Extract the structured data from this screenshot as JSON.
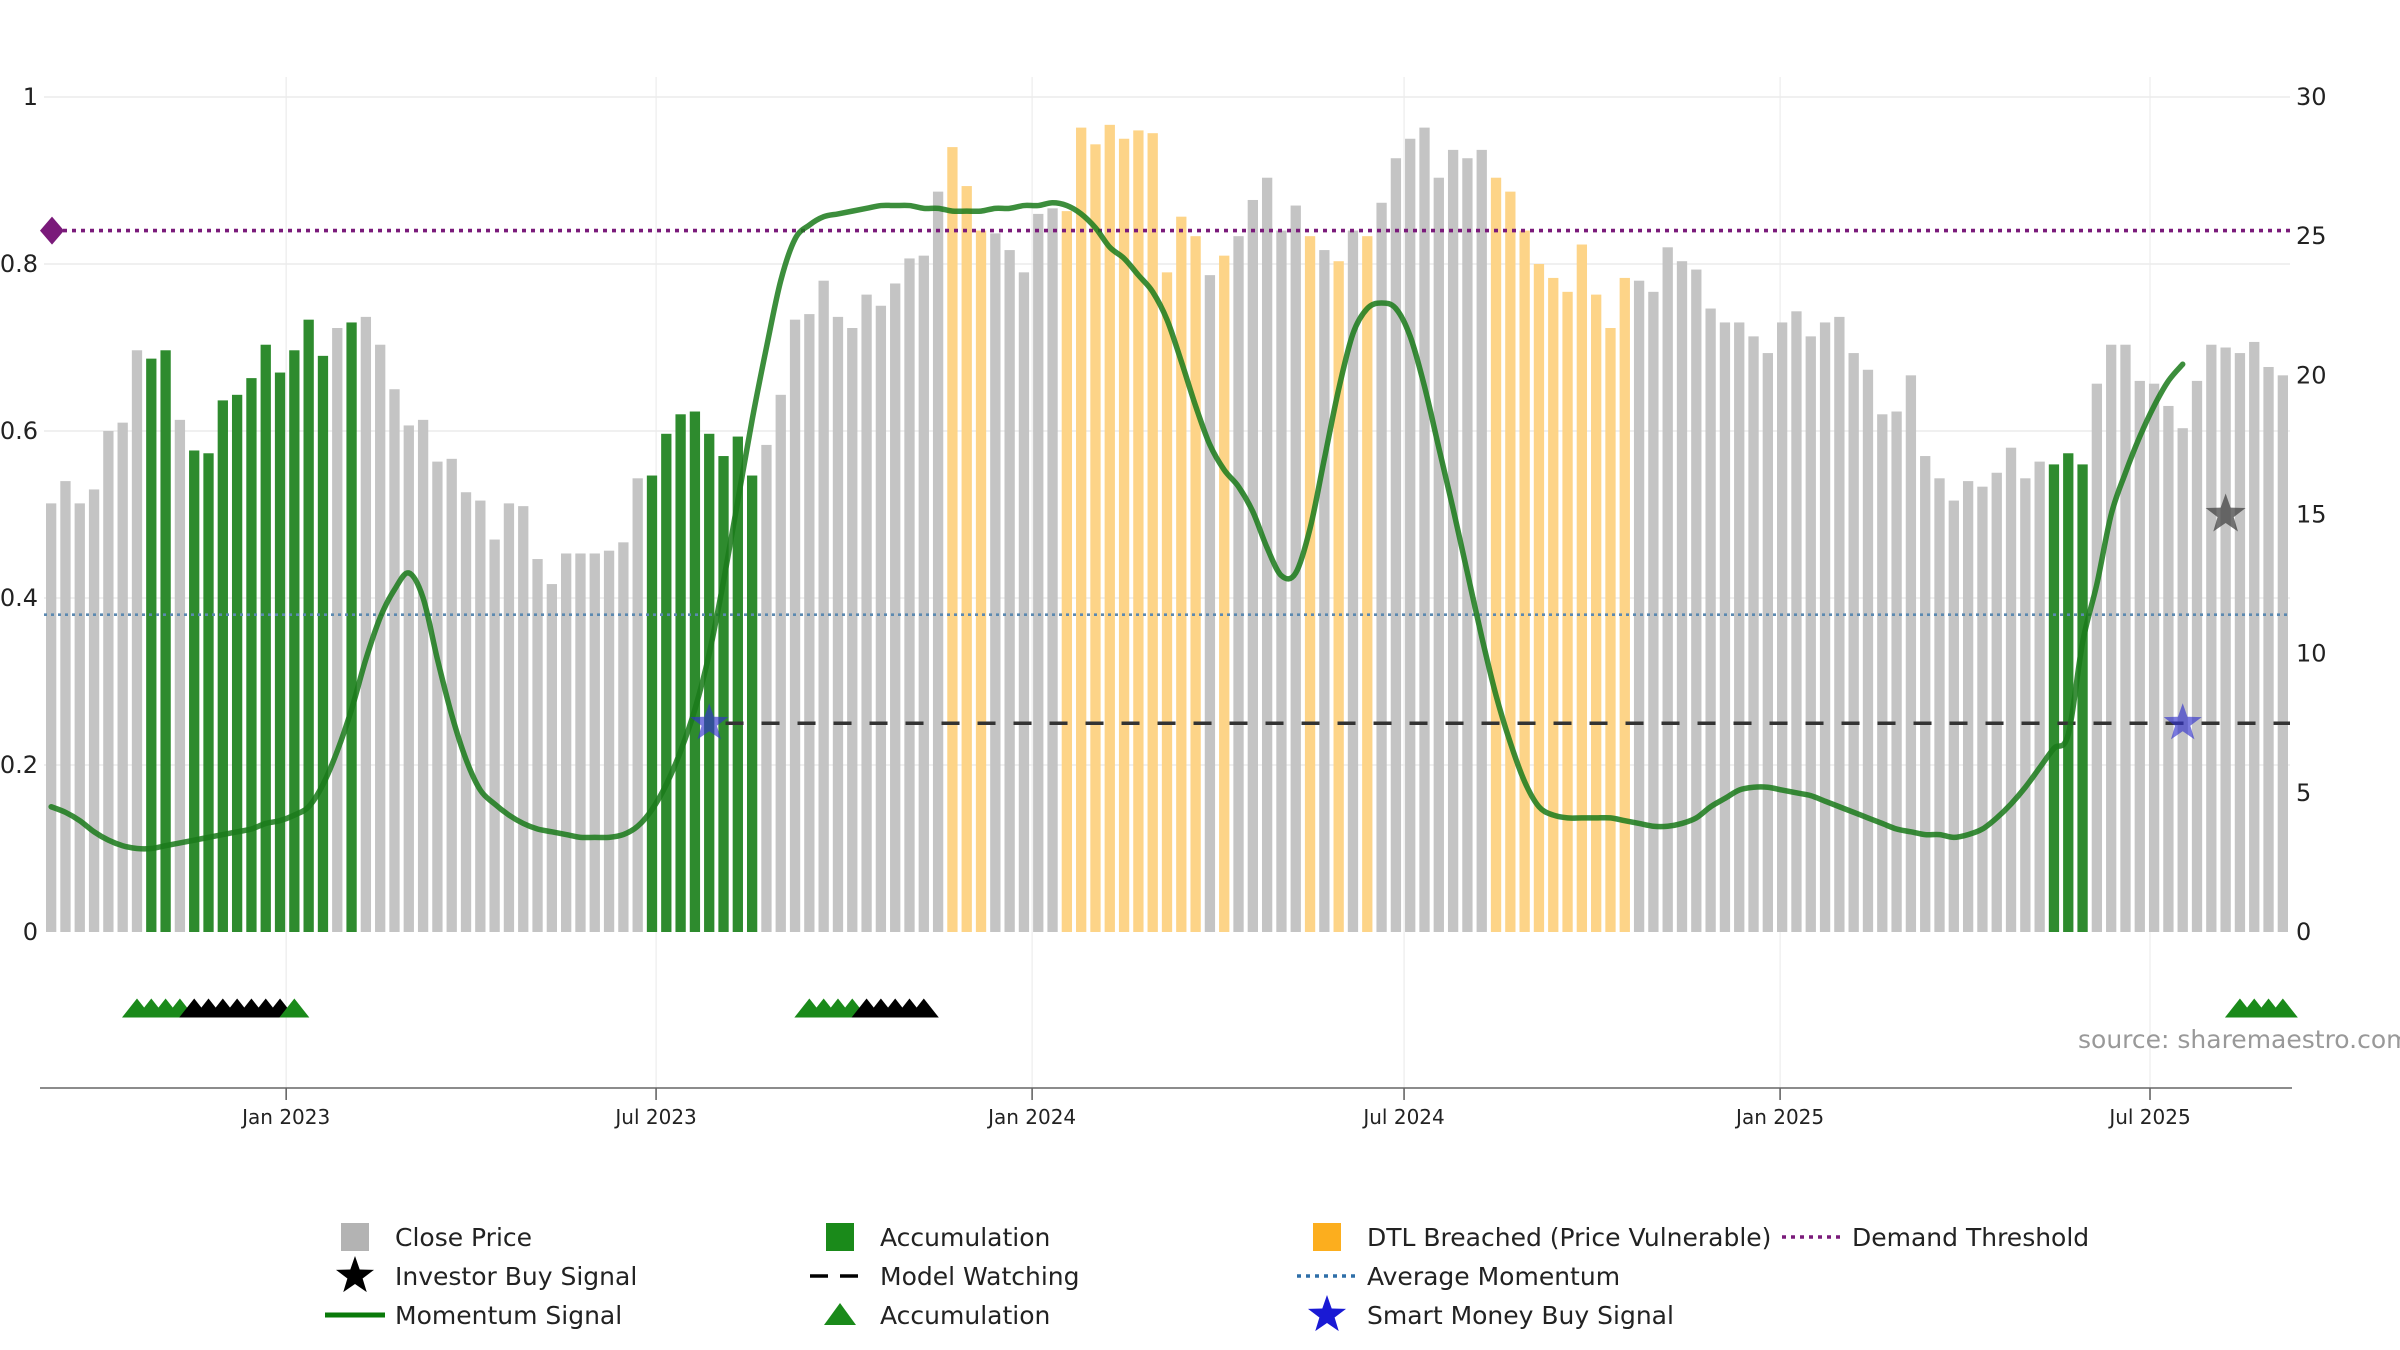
{
  "chart_data": {
    "type": "bar",
    "source_text": "source: sharemaestro.com",
    "x_start": "2022-09-08",
    "bar_interval_days": 7,
    "x_ticks": [
      "2023-01-01",
      "2023-07-01",
      "2024-01-01",
      "2024-07-01",
      "2025-01-01",
      "2025-07-01"
    ],
    "x_tick_labels": [
      "Jan 2023",
      "Jul 2023",
      "Jan 2024",
      "Jul 2024",
      "Jan 2025",
      "Jul 2025"
    ],
    "left_axis": {
      "range": [
        0,
        1
      ],
      "ticks": [
        0,
        0.2,
        0.4,
        0.6,
        0.8,
        1
      ],
      "tick_labels": [
        "0",
        "0.2",
        "0.4",
        "0.6",
        "0.8",
        "1"
      ]
    },
    "right_axis": {
      "range": [
        0,
        30
      ],
      "ticks": [
        0,
        5,
        10,
        15,
        20,
        25,
        30
      ],
      "tick_labels": [
        "0",
        "5",
        "10",
        "15",
        "20",
        "25",
        "30"
      ]
    },
    "grid": true,
    "colors": {
      "close": "#c4c4c4",
      "accumulation": "#2e8b2e",
      "dtl": "#fdd488",
      "momentum": "#1a7a1a",
      "average": "#5b89b0",
      "demand": "#7a1a7a",
      "watch": "#333333",
      "investor_star": "#444444",
      "smart_star": "#3333cc",
      "marker_acc": "#1a8a1a",
      "marker_investor": "#000000"
    },
    "close_prices": [
      15.4,
      16.2,
      15.4,
      15.9,
      18.0,
      18.3,
      20.9,
      20.6,
      20.9,
      18.4,
      17.3,
      17.2,
      19.1,
      19.3,
      19.9,
      21.1,
      20.1,
      20.9,
      22.0,
      20.7,
      21.7,
      21.9,
      22.1,
      21.1,
      19.5,
      18.2,
      18.4,
      16.9,
      17.0,
      15.8,
      15.5,
      14.1,
      15.4,
      15.3,
      13.4,
      12.5,
      13.6,
      13.6,
      13.6,
      13.7,
      14.0,
      16.3,
      16.4,
      17.9,
      18.6,
      18.7,
      17.9,
      17.1,
      17.8,
      16.4,
      17.5,
      19.3,
      22.0,
      22.2,
      23.4,
      22.1,
      21.7,
      22.9,
      22.5,
      23.3,
      24.2,
      24.3,
      26.6,
      28.2,
      26.8,
      25.2,
      25.1,
      24.5,
      23.7,
      25.8,
      26.0,
      25.9,
      28.9,
      28.3,
      29.0,
      28.5,
      28.8,
      28.7,
      23.7,
      25.7,
      25.0,
      23.6,
      24.3,
      25.0,
      26.3,
      27.1,
      25.2,
      26.1,
      25.0,
      24.5,
      24.1,
      25.2,
      25.0,
      26.2,
      27.8,
      28.5,
      28.9,
      27.1,
      28.1,
      27.8,
      28.1,
      27.1,
      26.6,
      25.2,
      24.0,
      23.5,
      23.0,
      24.7,
      22.9,
      21.7,
      23.5,
      23.4,
      23.0,
      24.6,
      24.1,
      23.8,
      22.4,
      21.9,
      21.9,
      21.4,
      20.8,
      21.9,
      22.3,
      21.4,
      21.9,
      22.1,
      20.8,
      20.2,
      18.6,
      18.7,
      20.0,
      17.1,
      16.3,
      15.5,
      16.2,
      16.0,
      16.5,
      17.4,
      16.3,
      16.9,
      16.8,
      17.2,
      16.8,
      19.7,
      21.1,
      21.1,
      19.8,
      19.7,
      18.9,
      18.1,
      19.8,
      21.1,
      21.0,
      20.8,
      21.2,
      20.3,
      20.0
    ],
    "bar_states": "CCCCCCCAACAAAAAAAAAACACCCCCCCCCCCCCCCCCCCCAAAAAAAACCCCCCCCCCCCCDDDCCCCCDDDDDDDDDDCDCCCCCDCDCDCCCCCCCCDDDDDDDDDDCCCCCCCCCCCCCCCCCCCCCCCCCCCCCAAACCCCCCCCCCCCCCAAAAAACCCCCCC",
    "momentum": [
      4.5,
      4.3,
      4.0,
      3.6,
      3.3,
      3.1,
      3.0,
      3.0,
      3.1,
      3.2,
      3.3,
      3.4,
      3.5,
      3.6,
      3.7,
      3.9,
      4.0,
      4.2,
      4.5,
      5.3,
      6.5,
      8.0,
      9.8,
      11.3,
      12.3,
      12.9,
      12.0,
      9.8,
      7.8,
      6.2,
      5.1,
      4.6,
      4.2,
      3.9,
      3.7,
      3.6,
      3.5,
      3.4,
      3.4,
      3.4,
      3.5,
      3.8,
      4.4,
      5.3,
      6.5,
      8.0,
      10.0,
      12.6,
      15.5,
      18.4,
      21.0,
      23.4,
      24.9,
      25.4,
      25.7,
      25.8,
      25.9,
      26.0,
      26.1,
      26.1,
      26.1,
      26.0,
      26.0,
      25.9,
      25.9,
      25.9,
      26.0,
      26.0,
      26.1,
      26.1,
      26.2,
      26.1,
      25.8,
      25.3,
      24.6,
      24.2,
      23.6,
      23.0,
      22.0,
      20.5,
      18.9,
      17.5,
      16.6,
      16.0,
      15.1,
      13.8,
      12.8,
      12.9,
      14.5,
      17.0,
      19.5,
      21.5,
      22.4,
      22.6,
      22.4,
      21.4,
      19.6,
      17.4,
      15.2,
      12.9,
      10.6,
      8.5,
      6.8,
      5.4,
      4.5,
      4.2,
      4.1,
      4.1,
      4.1,
      4.1,
      4.0,
      3.9,
      3.8,
      3.8,
      3.9,
      4.1,
      4.5,
      4.8,
      5.1,
      5.2,
      5.2,
      5.1,
      5.0,
      4.9,
      4.7,
      4.5,
      4.3,
      4.1,
      3.9,
      3.7,
      3.6,
      3.5,
      3.5,
      3.4,
      3.5,
      3.7,
      4.1,
      4.6,
      5.2,
      5.9,
      6.6,
      7.1,
      10.4,
      12.5,
      15.0,
      16.5,
      17.8,
      18.9,
      19.8,
      20.4
    ],
    "average_momentum": 0.38,
    "demand_threshold": 0.84,
    "model_watching": {
      "value": 0.25,
      "start_index": 47
    },
    "smart_money_buy_signals": [
      {
        "index": 46,
        "value": 0.25
      },
      {
        "index": 149,
        "value": 0.25
      }
    ],
    "investor_buy_signals": [
      {
        "index": 152,
        "value": 0.5
      }
    ],
    "markers": "......GGGGIIIIIIIG...................................GGGGIIIII...........................................................................................GGGG.............GGGGIIIII.........",
    "legend": [
      {
        "label": "Close Price",
        "symbol": "square",
        "color": "#b3b3b3"
      },
      {
        "label": "Investor Buy Signal",
        "symbol": "star",
        "color": "#000000"
      },
      {
        "label": "Momentum Signal",
        "symbol": "line",
        "color": "#0a7a0a"
      },
      {
        "label": "Accumulation",
        "symbol": "square",
        "color": "#1a8a1a"
      },
      {
        "label": "Model Watching",
        "symbol": "dash",
        "color": "#000000"
      },
      {
        "label": "Accumulation",
        "symbol": "triangle",
        "color": "#1a8a1a"
      },
      {
        "label": "DTL Breached (Price Vulnerable)",
        "symbol": "square",
        "color": "#fcae1e"
      },
      {
        "label": "Average Momentum",
        "symbol": "dot",
        "color": "#2e6fa8"
      },
      {
        "label": "Smart Money Buy Signal",
        "symbol": "star",
        "color": "#1a1ad4"
      },
      {
        "label": "Demand Threshold",
        "symbol": "dot",
        "color": "#7a1a7a"
      }
    ]
  }
}
